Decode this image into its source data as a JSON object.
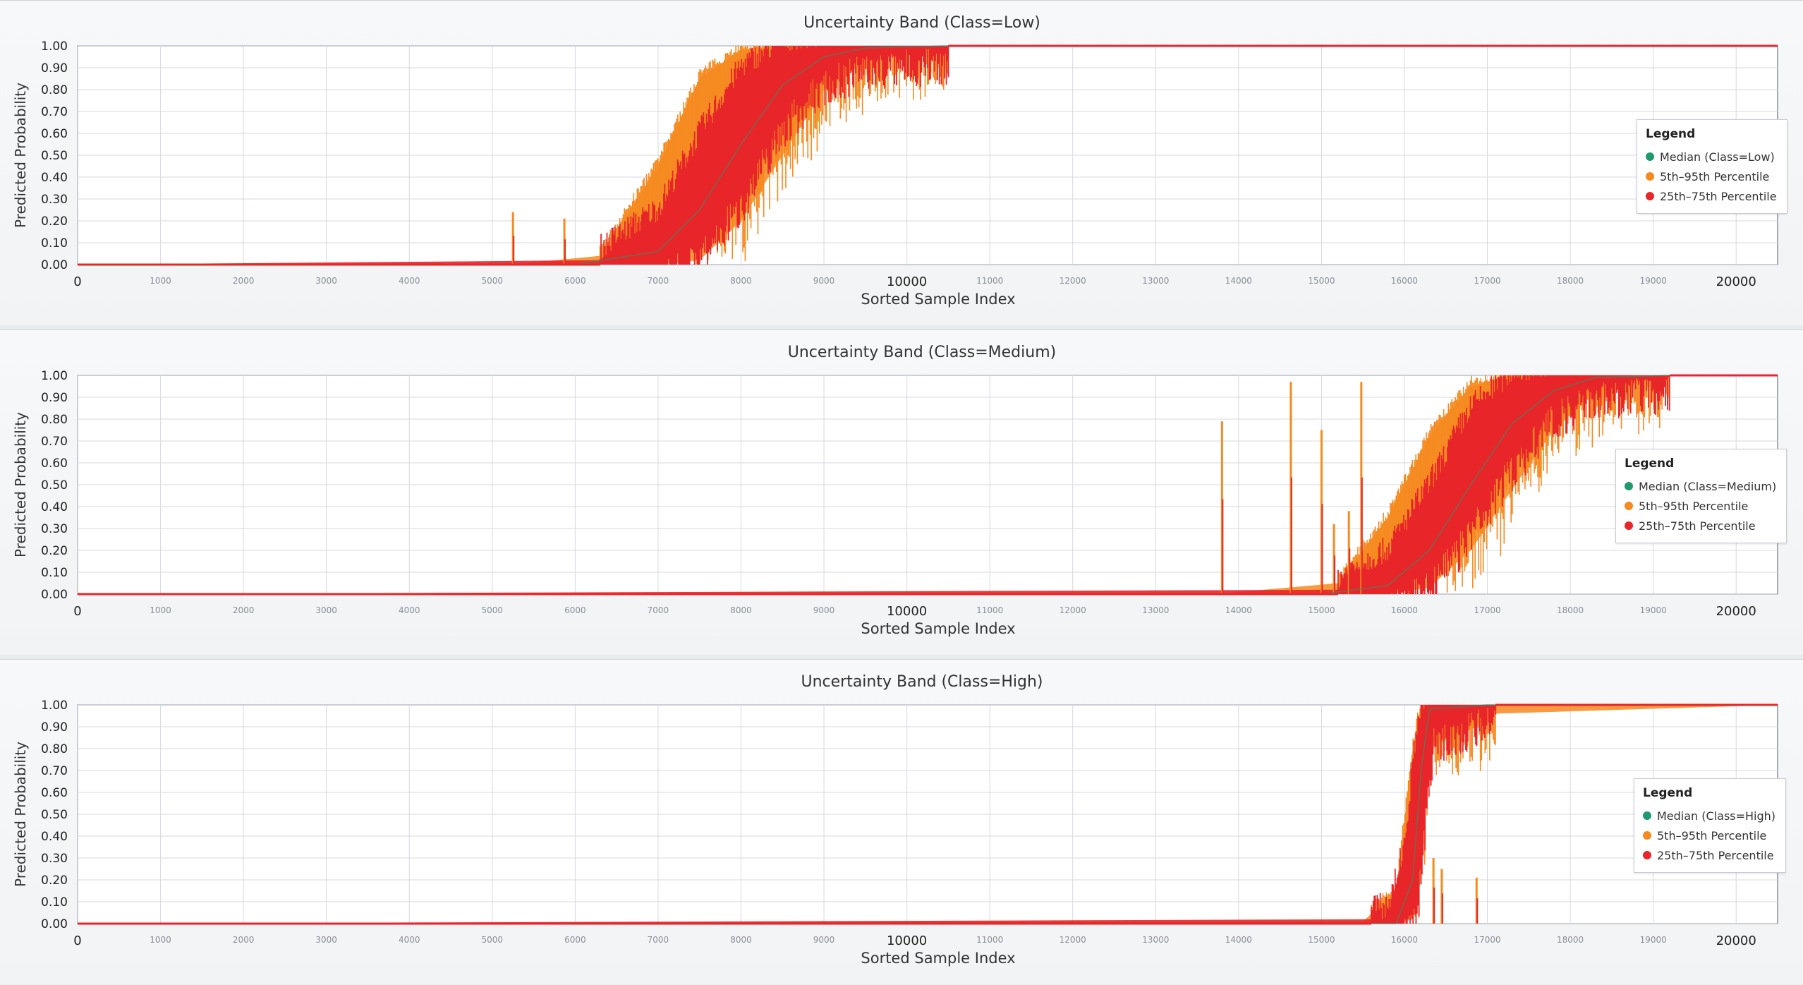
{
  "colors": {
    "median": "#1f9a6e",
    "outer_band": "#f58a1f",
    "inner_band": "#e8262a",
    "grid": "#d5d9de",
    "axis": "#8a9099"
  },
  "chart_data": [
    {
      "type": "area",
      "title": "Uncertainty Band (Class=Low)",
      "xlabel": "Sorted Sample Index",
      "ylabel": "Predicted Probability",
      "xlim": [
        0,
        20500
      ],
      "ylim": [
        0,
        1
      ],
      "grid": true,
      "legend_position": "right",
      "legend": {
        "title": "Legend",
        "entries": [
          "Median (Class=Low)",
          "5th–95th Percentile",
          "25th–75th Percentile"
        ]
      },
      "x_ticks": [
        "0",
        "1000",
        "2000",
        "3000",
        "4000",
        "5000",
        "6000",
        "7000",
        "8000",
        "9000",
        "10000",
        "11000",
        "12000",
        "13000",
        "14000",
        "15000",
        "16000",
        "17000",
        "18000",
        "19000",
        "20000"
      ],
      "y_ticks": [
        "0.00",
        "0.10",
        "0.20",
        "0.30",
        "0.40",
        "0.50",
        "0.60",
        "0.70",
        "0.80",
        "0.90",
        "1.00"
      ],
      "transition": {
        "start": 6300,
        "mid": 7950,
        "end": 10500
      },
      "spikes": [
        {
          "x": 5250,
          "y": 0.24
        },
        {
          "x": 5870,
          "y": 0.21
        }
      ],
      "series": [
        {
          "name": "Median (Class=Low)",
          "x": [
            0,
            6000,
            7000,
            7500,
            8000,
            8500,
            9000,
            9500,
            10500,
            20500
          ],
          "values": [
            0.0,
            0.0,
            0.06,
            0.25,
            0.55,
            0.82,
            0.95,
            0.99,
            1.0,
            1.0
          ]
        },
        {
          "name": "5th–95th Percentile",
          "x": [
            0,
            5200,
            6300,
            7000,
            7500,
            8000,
            8500,
            9000,
            9500,
            10500,
            20500
          ],
          "lower": [
            0.0,
            0.0,
            0.0,
            0.0,
            0.02,
            0.2,
            0.5,
            0.8,
            0.93,
            1.0,
            1.0
          ],
          "upper": [
            0.0,
            0.0,
            0.04,
            0.45,
            0.85,
            0.98,
            1.0,
            1.0,
            1.0,
            1.0,
            1.0
          ]
        },
        {
          "name": "25th–75th Percentile",
          "x": [
            0,
            6300,
            7000,
            7500,
            8000,
            8500,
            9000,
            9500,
            10500,
            20500
          ],
          "lower": [
            0.0,
            0.0,
            0.01,
            0.1,
            0.35,
            0.7,
            0.9,
            0.97,
            1.0,
            1.0
          ],
          "upper": [
            0.0,
            0.02,
            0.2,
            0.55,
            0.85,
            0.97,
            1.0,
            1.0,
            1.0,
            1.0
          ]
        }
      ]
    },
    {
      "type": "area",
      "title": "Uncertainty Band (Class=Medium)",
      "xlabel": "Sorted Sample Index",
      "ylabel": "Predicted Probability",
      "xlim": [
        0,
        20500
      ],
      "ylim": [
        0,
        1
      ],
      "grid": true,
      "legend_position": "right",
      "legend": {
        "title": "Legend",
        "entries": [
          "Median (Class=Medium)",
          "5th–95th Percentile",
          "25th–75th Percentile"
        ]
      },
      "x_ticks": [
        "0",
        "1000",
        "2000",
        "3000",
        "4000",
        "5000",
        "6000",
        "7000",
        "8000",
        "9000",
        "10000",
        "11000",
        "12000",
        "13000",
        "14000",
        "15000",
        "16000",
        "17000",
        "18000",
        "19000",
        "20000"
      ],
      "y_ticks": [
        "0.00",
        "0.10",
        "0.20",
        "0.30",
        "0.40",
        "0.50",
        "0.60",
        "0.70",
        "0.80",
        "0.90",
        "1.00"
      ],
      "transition": {
        "start": 15200,
        "mid": 16850,
        "end": 19200
      },
      "spikes": [
        {
          "x": 13800,
          "y": 0.79
        },
        {
          "x": 14630,
          "y": 0.97
        },
        {
          "x": 15000,
          "y": 0.75
        },
        {
          "x": 15480,
          "y": 0.97
        },
        {
          "x": 15150,
          "y": 0.32
        },
        {
          "x": 15330,
          "y": 0.38
        }
      ],
      "series": [
        {
          "name": "Median (Class=Medium)",
          "x": [
            0,
            15000,
            15800,
            16300,
            16800,
            17300,
            17800,
            18300,
            19200,
            20500
          ],
          "values": [
            0.0,
            0.0,
            0.04,
            0.2,
            0.5,
            0.78,
            0.93,
            0.99,
            1.0,
            1.0
          ]
        },
        {
          "name": "5th–95th Percentile",
          "x": [
            0,
            13700,
            15200,
            15800,
            16300,
            16800,
            17300,
            17800,
            18300,
            19200,
            20500
          ],
          "lower": [
            0.0,
            0.0,
            0.0,
            0.0,
            0.03,
            0.2,
            0.48,
            0.75,
            0.92,
            1.0,
            1.0
          ],
          "upper": [
            0.0,
            0.0,
            0.05,
            0.35,
            0.72,
            0.95,
            1.0,
            1.0,
            1.0,
            1.0,
            1.0
          ]
        },
        {
          "name": "25th–75th Percentile",
          "x": [
            0,
            15200,
            15800,
            16300,
            16800,
            17300,
            17800,
            18300,
            19200,
            20500
          ],
          "lower": [
            0.0,
            0.0,
            0.01,
            0.1,
            0.35,
            0.65,
            0.88,
            0.97,
            1.0,
            1.0
          ],
          "upper": [
            0.0,
            0.02,
            0.15,
            0.45,
            0.8,
            0.96,
            1.0,
            1.0,
            1.0,
            1.0
          ]
        }
      ]
    },
    {
      "type": "area",
      "title": "Uncertainty Band (Class=High)",
      "xlabel": "Sorted Sample Index",
      "ylabel": "Predicted Probability",
      "xlim": [
        0,
        20500
      ],
      "ylim": [
        0,
        1
      ],
      "grid": true,
      "legend_position": "right",
      "legend": {
        "title": "Legend",
        "entries": [
          "Median (Class=High)",
          "5th–95th Percentile",
          "25th–75th Percentile"
        ]
      },
      "x_ticks": [
        "0",
        "1000",
        "2000",
        "3000",
        "4000",
        "5000",
        "6000",
        "7000",
        "8000",
        "9000",
        "10000",
        "11000",
        "12000",
        "13000",
        "14000",
        "15000",
        "16000",
        "17000",
        "18000",
        "19000",
        "20000"
      ],
      "y_ticks": [
        "0.00",
        "0.10",
        "0.20",
        "0.30",
        "0.40",
        "0.50",
        "0.60",
        "0.70",
        "0.80",
        "0.90",
        "1.00"
      ],
      "transition": {
        "start": 15600,
        "mid": 16180,
        "end": 17100
      },
      "spikes": [
        {
          "x": 16870,
          "y": 0.21
        },
        {
          "x": 16450,
          "y": 0.25
        },
        {
          "x": 16350,
          "y": 0.3
        }
      ],
      "series": [
        {
          "name": "Median (Class=High)",
          "x": [
            0,
            15900,
            16100,
            16200,
            16300,
            17000,
            20500
          ],
          "values": [
            0.0,
            0.0,
            0.2,
            0.7,
            0.98,
            1.0,
            1.0
          ]
        },
        {
          "name": "5th–95th Percentile",
          "x": [
            0,
            15500,
            15900,
            16100,
            16200,
            16300,
            17100,
            20500
          ],
          "lower": [
            0.0,
            0.0,
            0.0,
            0.02,
            0.2,
            0.8,
            0.96,
            1.0
          ],
          "upper": [
            0.0,
            0.01,
            0.15,
            0.8,
            1.0,
            1.0,
            1.0,
            1.0
          ]
        },
        {
          "name": "25th–75th Percentile",
          "x": [
            0,
            15800,
            16000,
            16150,
            16250,
            16350,
            17000,
            20500
          ],
          "lower": [
            0.0,
            0.0,
            0.02,
            0.1,
            0.5,
            0.9,
            1.0,
            1.0
          ],
          "upper": [
            0.0,
            0.02,
            0.3,
            0.85,
            0.99,
            1.0,
            1.0,
            1.0
          ]
        }
      ]
    }
  ]
}
